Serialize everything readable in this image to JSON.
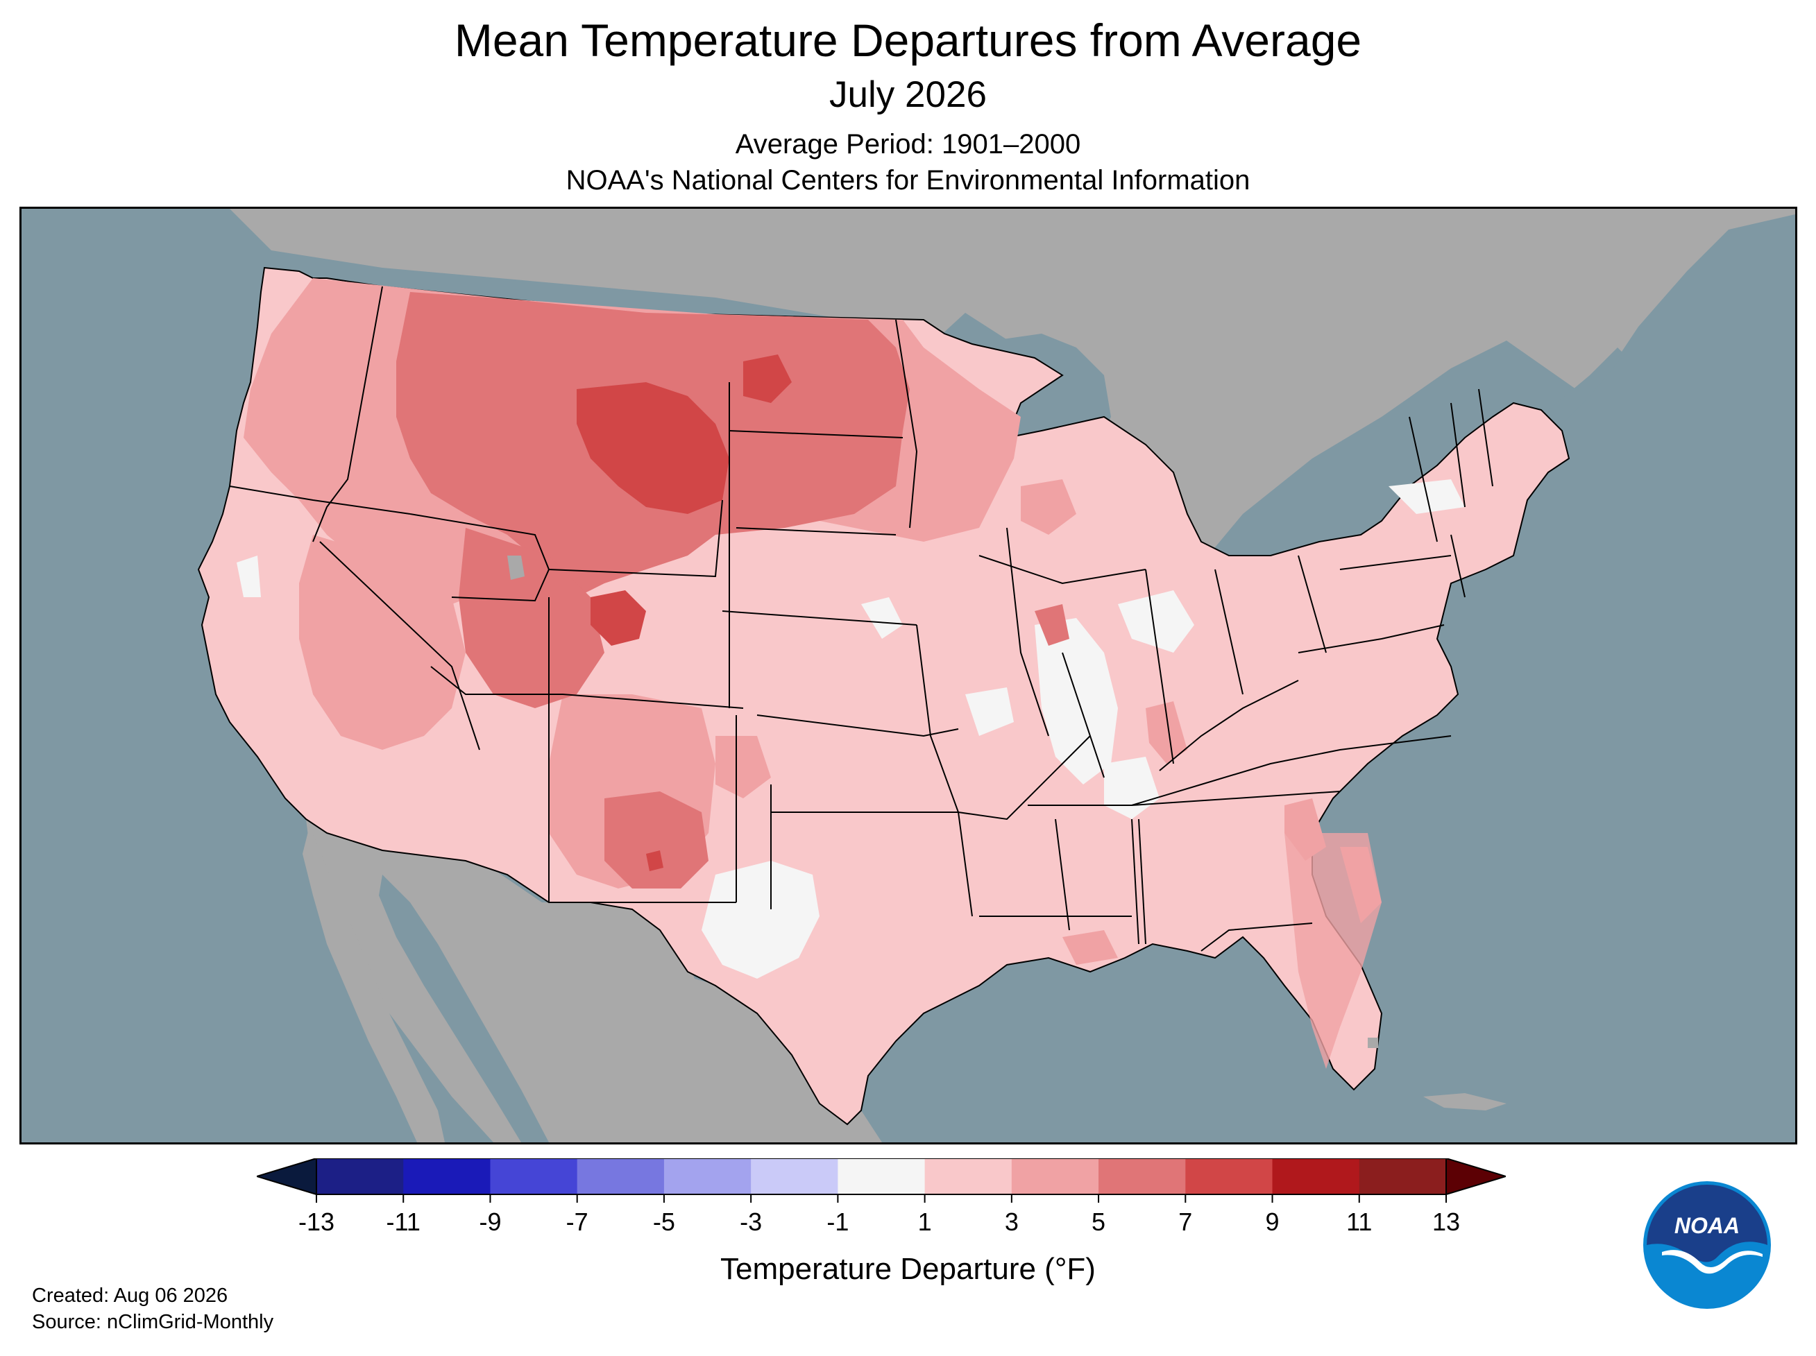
{
  "title": "Mean Temperature Departures from Average",
  "subtitle": "July 2026",
  "average_period": "Average Period: 1901–2000",
  "organization": "NOAA's National Centers for Environmental Information",
  "colorbar": {
    "label": "Temperature Departure (°F)",
    "ticks": [
      "-13",
      "-11",
      "-9",
      "-7",
      "-5",
      "-3",
      "-1",
      "1",
      "3",
      "5",
      "7",
      "9",
      "11",
      "13"
    ],
    "colors": [
      "#1c1f86",
      "#1a1ab8",
      "#4545d6",
      "#7777e0",
      "#a3a3ee",
      "#cacaf8",
      "#f5f5f5",
      "#f9c8ca",
      "#f0a2a4",
      "#e07577",
      "#d14647",
      "#b0181c",
      "#8b1e1e"
    ],
    "under_color": "#0a1a3d",
    "over_color": "#5c0004"
  },
  "map": {
    "ocean_color": "#7f98a3",
    "land_outside_color": "#a9a9a9",
    "no_data_color": "#a9a9a9"
  },
  "logo_text": "NOAA",
  "footer": {
    "created": "Created: Aug 06 2026",
    "source": "Source: nClimGrid-Monthly"
  }
}
